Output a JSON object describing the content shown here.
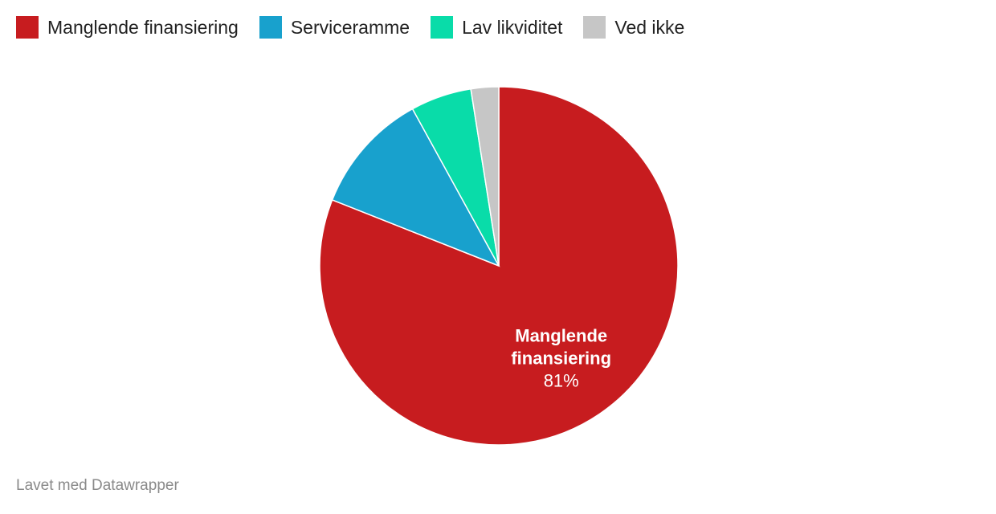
{
  "chart_data": {
    "type": "pie",
    "categories": [
      "Manglende finansiering",
      "Serviceramme",
      "Lav likviditet",
      "Ved ikke"
    ],
    "values": [
      81,
      11,
      5.5,
      2.5
    ],
    "colors": [
      "#c71c1f",
      "#18a1cd",
      "#09dca9",
      "#c6c6c6"
    ],
    "legend_position": "top-left",
    "slice_labels": [
      {
        "index": 0,
        "name_lines": [
          "Manglende",
          "finansiering"
        ],
        "value_text": "81%"
      }
    ]
  },
  "footer": {
    "credit": "Lavet med Datawrapper"
  }
}
